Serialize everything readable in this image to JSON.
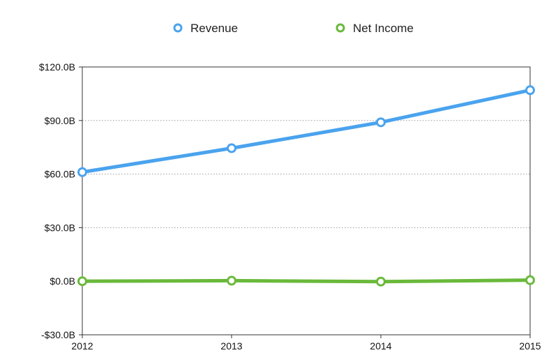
{
  "chart_data": {
    "type": "line",
    "categories": [
      "2012",
      "2013",
      "2014",
      "2015"
    ],
    "series": [
      {
        "name": "Revenue",
        "color": "#4aa3ee",
        "values": [
          61.1,
          74.5,
          89.0,
          107.0
        ]
      },
      {
        "name": "Net Income",
        "color": "#6ab93b",
        "values": [
          0.0,
          0.3,
          -0.2,
          0.6
        ]
      }
    ],
    "ylim": [
      -30,
      120
    ],
    "yticks": [
      -30,
      0,
      30,
      60,
      90,
      120
    ],
    "ytick_labels": [
      "-$30.0B",
      "$0.0B",
      "$30.0B",
      "$60.0B",
      "$90.0B",
      "$120.0B"
    ],
    "grid": "horizontal-dotted",
    "legend_position": "top-center"
  }
}
